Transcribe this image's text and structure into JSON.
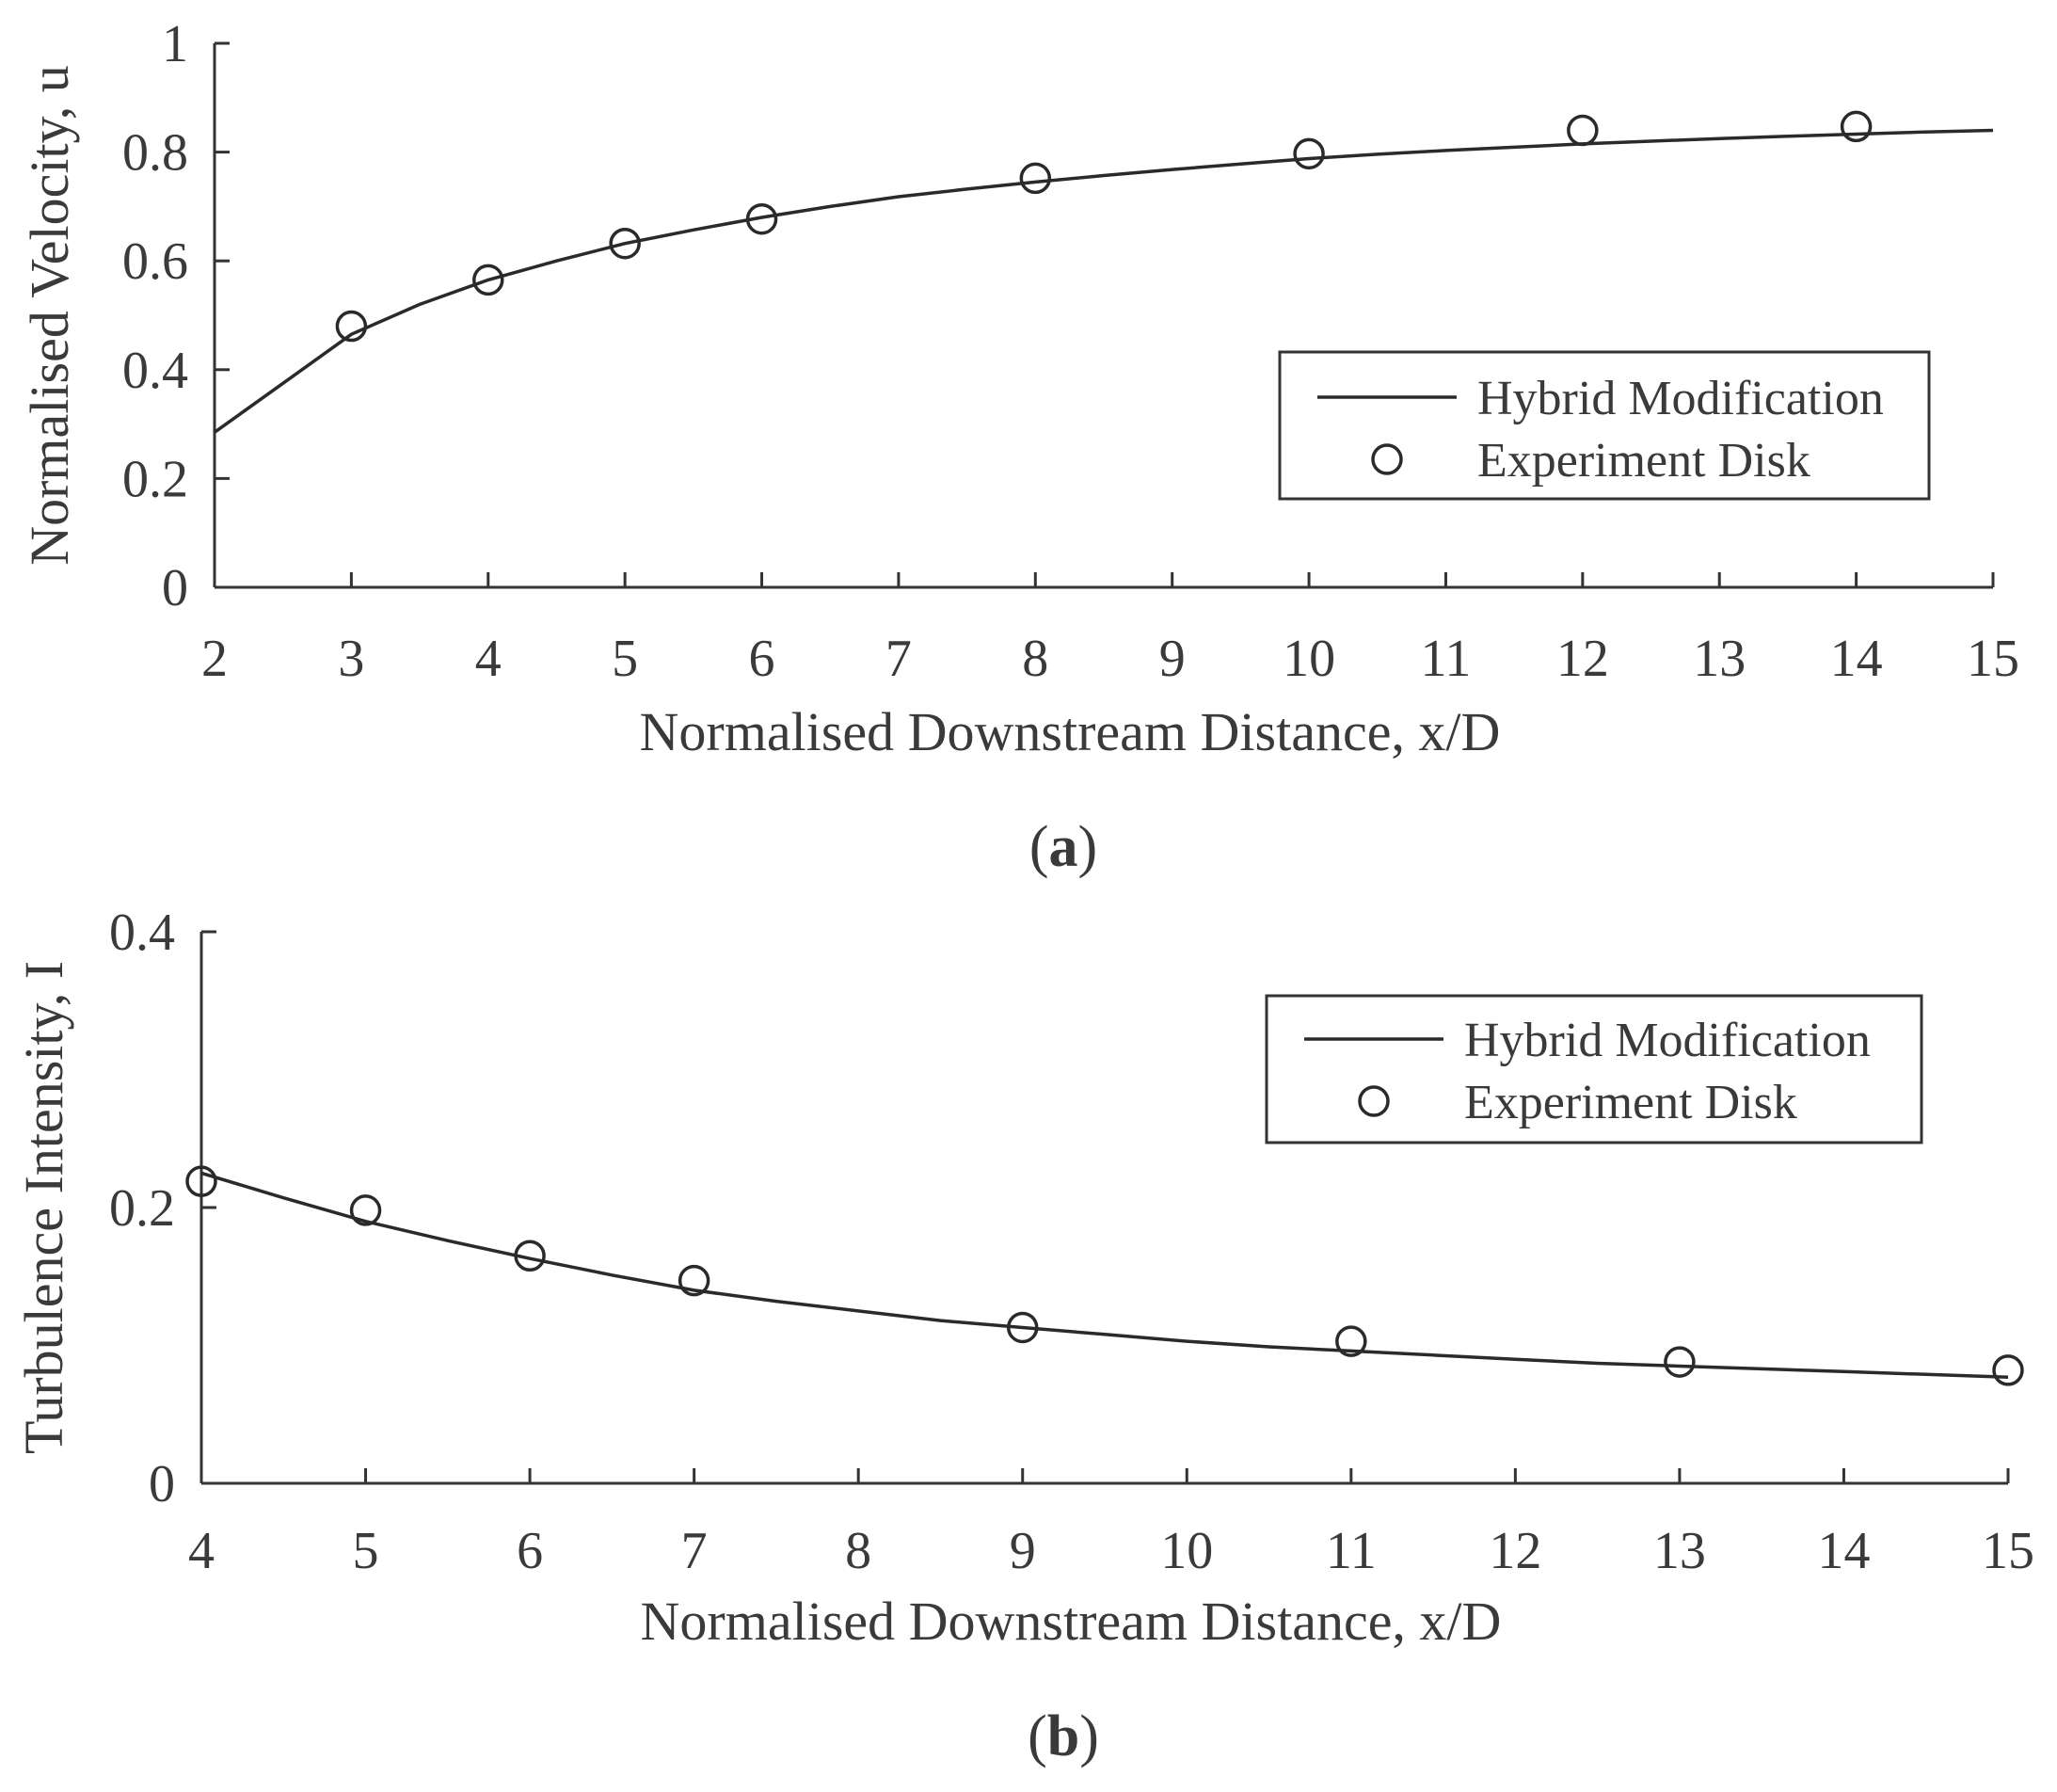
{
  "chart_data": [
    {
      "type": "line",
      "panel_label": {
        "open": "(",
        "letter": "a",
        "close": ")"
      },
      "xlabel": "Normalised Downstream Distance, x/D",
      "ylabel": "Normalised Velocity, u",
      "xlim": [
        2,
        15
      ],
      "ylim": [
        0,
        1
      ],
      "xticks": [
        "2",
        "3",
        "4",
        "5",
        "6",
        "7",
        "8",
        "9",
        "10",
        "11",
        "12",
        "13",
        "14",
        "15"
      ],
      "yticks": [
        "0",
        "0.2",
        "0.4",
        "0.6",
        "0.8",
        "1"
      ],
      "grid": false,
      "legend_position": "right",
      "series": [
        {
          "name": "Hybrid Modification",
          "marker": "line",
          "x": [
            2,
            2.5,
            3,
            3.5,
            4,
            4.5,
            5,
            5.5,
            6,
            6.5,
            7,
            7.5,
            8,
            8.5,
            9,
            9.5,
            10,
            10.5,
            11,
            11.5,
            12,
            12.5,
            13,
            13.5,
            14,
            14.5,
            15
          ],
          "y": [
            0.285,
            0.375,
            0.465,
            0.52,
            0.565,
            0.6,
            0.632,
            0.657,
            0.68,
            0.7,
            0.718,
            0.732,
            0.745,
            0.757,
            0.768,
            0.778,
            0.788,
            0.796,
            0.803,
            0.809,
            0.815,
            0.82,
            0.825,
            0.829,
            0.833,
            0.837,
            0.84
          ]
        },
        {
          "name": "Experiment Disk",
          "marker": "circle",
          "x": [
            3,
            4,
            5,
            6,
            8,
            10,
            12,
            14
          ],
          "y": [
            0.48,
            0.565,
            0.632,
            0.677,
            0.752,
            0.797,
            0.84,
            0.847
          ]
        }
      ]
    },
    {
      "type": "line",
      "panel_label": {
        "open": "(",
        "letter": "b",
        "close": ")"
      },
      "xlabel": "Normalised Downstream Distance, x/D",
      "ylabel": "Turbulence Intensity, I",
      "xlim": [
        4,
        15
      ],
      "ylim": [
        0,
        0.4
      ],
      "xticks": [
        "4",
        "5",
        "6",
        "7",
        "8",
        "9",
        "10",
        "11",
        "12",
        "13",
        "14",
        "15"
      ],
      "yticks": [
        "0",
        "0.2",
        "0.4"
      ],
      "grid": false,
      "legend_position": "top-right",
      "series": [
        {
          "name": "Hybrid Modification",
          "marker": "line",
          "x": [
            4,
            4.5,
            5,
            5.5,
            6,
            6.5,
            7,
            7.5,
            8,
            8.5,
            9,
            9.5,
            10,
            10.5,
            11,
            11.5,
            12,
            12.5,
            13,
            13.5,
            14,
            14.5,
            15
          ],
          "y": [
            0.225,
            0.207,
            0.19,
            0.176,
            0.163,
            0.151,
            0.14,
            0.132,
            0.125,
            0.118,
            0.113,
            0.108,
            0.103,
            0.099,
            0.096,
            0.093,
            0.09,
            0.087,
            0.085,
            0.083,
            0.081,
            0.079,
            0.077
          ]
        },
        {
          "name": "Experiment Disk",
          "marker": "circle",
          "x": [
            4,
            5,
            6,
            7,
            9,
            11,
            13,
            15
          ],
          "y": [
            0.219,
            0.198,
            0.165,
            0.147,
            0.113,
            0.103,
            0.088,
            0.082
          ]
        }
      ]
    }
  ]
}
